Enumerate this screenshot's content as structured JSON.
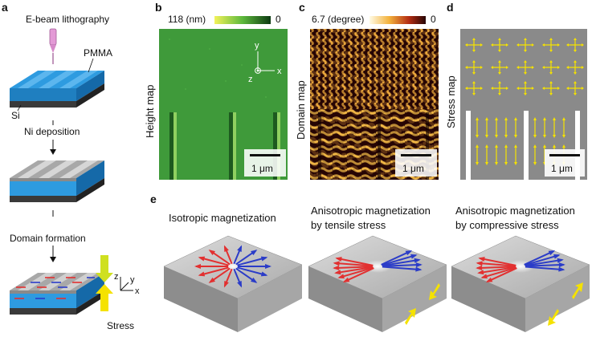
{
  "panels": {
    "a": {
      "letter": "a",
      "step1": "E-beam lithography",
      "pmma": "PMMA",
      "si": "Si",
      "step2": "Ni deposition",
      "step3": "Domain formation",
      "axis_z": "z",
      "axis_y": "y",
      "axis_x": "x",
      "stress": "Stress"
    },
    "b": {
      "letter": "b",
      "colorbar_max": "118 (nm)",
      "colorbar_min": "0",
      "side_label": "Height map",
      "axis_y": "y",
      "axis_z": "z",
      "axis_x": "x",
      "scalebar": "1 μm"
    },
    "c": {
      "letter": "c",
      "colorbar_max": "6.7 (degree)",
      "colorbar_min": "0",
      "side_label": "Domain map",
      "scalebar": "1 μm"
    },
    "d": {
      "letter": "d",
      "side_label": "Stress map",
      "scalebar": "1 μm"
    },
    "e": {
      "letter": "e",
      "iso": [
        "Isotropic magnetization"
      ],
      "tensile": [
        "Anisotropic magnetization",
        "by tensile stress"
      ],
      "compressive": [
        "Anisotropic magnetization",
        "by compressive stress"
      ]
    }
  },
  "colors": {
    "pmma": "#2e9be0",
    "substrate": "#3a3a3a",
    "nickel": "#9a9a9a",
    "arrow_red": "#e23030",
    "arrow_blue": "#2b3cc8",
    "stress_arrow": "#f5e200",
    "height_map": "#3f9a3a",
    "stress_bg": "#8a8a8a"
  }
}
